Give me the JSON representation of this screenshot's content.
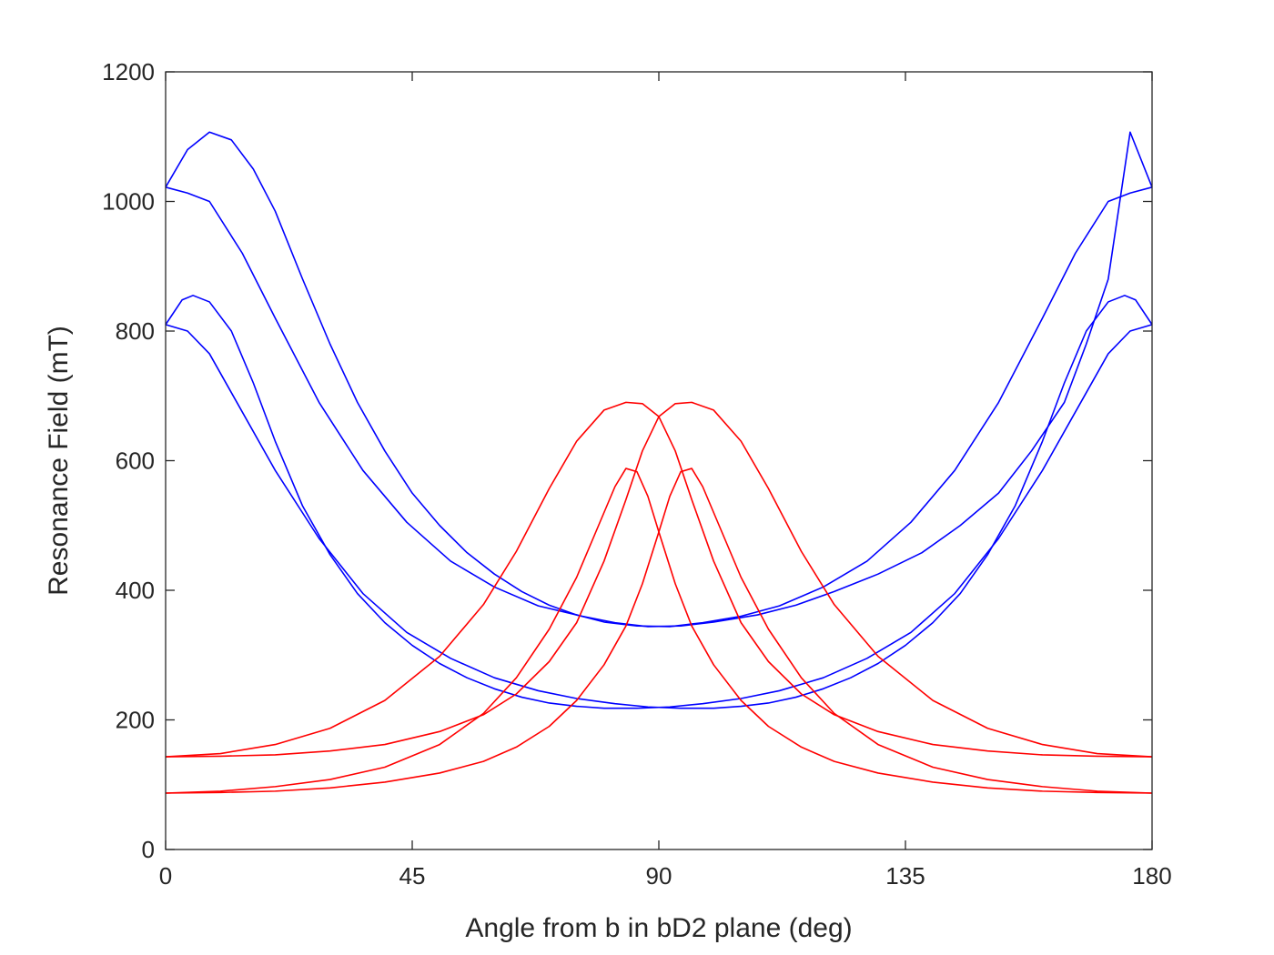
{
  "chart_data": {
    "type": "line",
    "title": "",
    "xlabel": "Angle from b in bD2 plane (deg)",
    "ylabel": "Resonance Field (mT)",
    "xlim": [
      0,
      180
    ],
    "ylim": [
      0,
      1200
    ],
    "xticks": [
      0,
      45,
      90,
      135,
      180
    ],
    "yticks": [
      0,
      200,
      400,
      600,
      800,
      1000,
      1200
    ],
    "grid": false,
    "legend": "none",
    "series": [
      {
        "color": "#0000ff",
        "x": [
          0,
          4,
          8,
          12,
          16,
          20,
          25,
          30,
          35,
          40,
          45,
          50,
          55,
          60,
          65,
          70,
          75,
          80,
          86,
          92,
          98,
          105,
          112,
          120,
          128,
          136,
          144,
          152,
          160,
          166,
          172,
          176,
          180
        ],
        "values": [
          1022,
          1080,
          1107,
          1095,
          1050,
          985,
          880,
          780,
          690,
          615,
          550,
          500,
          458,
          425,
          398,
          377,
          362,
          351,
          345,
          344,
          350,
          360,
          376,
          405,
          445,
          505,
          585,
          690,
          820,
          920,
          1000,
          1013,
          1022
        ]
      },
      {
        "color": "#0000ff",
        "x": [
          0,
          4,
          8,
          14,
          20,
          28,
          36,
          44,
          52,
          60,
          68,
          76,
          82,
          88,
          94,
          100,
          108,
          115,
          122,
          130,
          138,
          145,
          152,
          158,
          164,
          168,
          172,
          176,
          180
        ],
        "values": [
          1022,
          1013,
          1000,
          920,
          820,
          690,
          585,
          505,
          445,
          405,
          376,
          360,
          350,
          344,
          345,
          351,
          362,
          377,
          398,
          425,
          458,
          500,
          550,
          615,
          690,
          780,
          880,
          1107,
          1022
        ]
      },
      {
        "color": "#0000ff",
        "x": [
          0,
          3,
          5,
          8,
          12,
          16,
          20,
          25,
          30,
          35,
          40,
          45,
          50,
          55,
          60,
          65,
          70,
          75,
          80,
          86,
          92,
          98,
          105,
          112,
          120,
          128,
          136,
          144,
          152,
          160,
          168,
          172,
          176,
          180
        ],
        "values": [
          810,
          848,
          855,
          845,
          800,
          720,
          630,
          530,
          455,
          395,
          350,
          315,
          287,
          265,
          248,
          235,
          226,
          221,
          218,
          218,
          220,
          225,
          233,
          245,
          265,
          295,
          335,
          395,
          480,
          585,
          705,
          765,
          800,
          810
        ]
      },
      {
        "color": "#0000ff",
        "x": [
          0,
          4,
          8,
          12,
          20,
          28,
          36,
          44,
          52,
          60,
          68,
          75,
          82,
          88,
          94,
          100,
          105,
          110,
          115,
          120,
          125,
          130,
          135,
          140,
          145,
          150,
          155,
          160,
          164,
          168,
          172,
          175,
          177,
          180
        ],
        "values": [
          810,
          800,
          765,
          705,
          585,
          480,
          395,
          335,
          295,
          265,
          245,
          233,
          225,
          220,
          218,
          218,
          221,
          226,
          235,
          248,
          265,
          287,
          315,
          350,
          395,
          455,
          530,
          630,
          720,
          800,
          845,
          855,
          848,
          810
        ]
      },
      {
        "color": "#ff0000",
        "x": [
          0,
          10,
          20,
          30,
          40,
          50,
          58,
          64,
          70,
          75,
          80,
          84,
          87,
          90,
          93,
          96,
          100,
          105,
          110,
          116,
          122,
          130,
          140,
          150,
          160,
          170,
          180
        ],
        "values": [
          143,
          148,
          162,
          187,
          230,
          298,
          378,
          460,
          557,
          630,
          678,
          690,
          688,
          668,
          615,
          540,
          445,
          350,
          290,
          240,
          208,
          182,
          162,
          152,
          146,
          144,
          143
        ]
      },
      {
        "color": "#ff0000",
        "x": [
          0,
          10,
          20,
          30,
          40,
          50,
          58,
          64,
          70,
          75,
          80,
          84,
          87,
          90,
          93,
          96,
          100,
          105,
          110,
          116,
          122,
          130,
          140,
          150,
          160,
          170,
          180
        ],
        "values": [
          143,
          144,
          146,
          152,
          162,
          182,
          208,
          240,
          290,
          350,
          445,
          540,
          615,
          668,
          688,
          690,
          678,
          630,
          557,
          460,
          378,
          298,
          230,
          187,
          162,
          148,
          143
        ]
      },
      {
        "color": "#ff0000",
        "x": [
          0,
          10,
          20,
          30,
          40,
          50,
          58,
          64,
          70,
          75,
          79,
          82,
          84,
          86,
          88,
          90,
          93,
          96,
          100,
          105,
          110,
          116,
          122,
          130,
          140,
          150,
          160,
          170,
          180
        ],
        "values": [
          87,
          90,
          97,
          108,
          127,
          162,
          210,
          265,
          340,
          420,
          500,
          560,
          588,
          583,
          545,
          490,
          410,
          345,
          285,
          230,
          190,
          158,
          136,
          118,
          104,
          95,
          90,
          88,
          87
        ]
      },
      {
        "color": "#ff0000",
        "x": [
          0,
          10,
          20,
          30,
          40,
          50,
          58,
          64,
          70,
          75,
          80,
          84,
          87,
          90,
          92,
          94,
          96,
          98,
          101,
          105,
          110,
          116,
          122,
          130,
          140,
          150,
          160,
          170,
          180
        ],
        "values": [
          87,
          88,
          90,
          95,
          104,
          118,
          136,
          158,
          190,
          230,
          285,
          345,
          410,
          490,
          545,
          583,
          588,
          560,
          500,
          420,
          340,
          265,
          210,
          162,
          127,
          108,
          97,
          90,
          87
        ]
      }
    ]
  }
}
